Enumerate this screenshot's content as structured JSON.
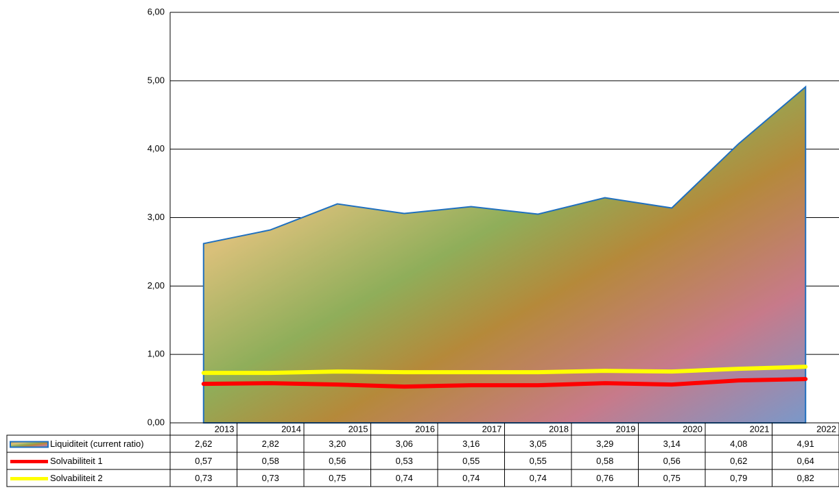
{
  "chart_data": {
    "type": "area",
    "categories": [
      "2013",
      "2014",
      "2015",
      "2016",
      "2017",
      "2018",
      "2019",
      "2020",
      "2021",
      "2022"
    ],
    "series": [
      {
        "name": "Liquiditeit (current ratio)",
        "type": "area",
        "color": "#1f6fbf",
        "values": [
          2.62,
          2.82,
          3.2,
          3.06,
          3.16,
          3.05,
          3.29,
          3.14,
          4.08,
          4.91
        ],
        "value_labels": [
          "2,62",
          "2,82",
          "3,20",
          "3,06",
          "3,16",
          "3,05",
          "3,29",
          "3,14",
          "4,08",
          "4,91"
        ]
      },
      {
        "name": "Solvabiliteit 1",
        "type": "line",
        "color": "#ff0000",
        "values": [
          0.57,
          0.58,
          0.56,
          0.53,
          0.55,
          0.55,
          0.58,
          0.56,
          0.62,
          0.64
        ],
        "value_labels": [
          "0,57",
          "0,58",
          "0,56",
          "0,53",
          "0,55",
          "0,55",
          "0,58",
          "0,56",
          "0,62",
          "0,64"
        ]
      },
      {
        "name": "Solvabiliteit 2",
        "type": "line",
        "color": "#ffff00",
        "values": [
          0.73,
          0.73,
          0.75,
          0.74,
          0.74,
          0.74,
          0.76,
          0.75,
          0.79,
          0.82
        ],
        "value_labels": [
          "0,73",
          "0,73",
          "0,75",
          "0,74",
          "0,74",
          "0,74",
          "0,76",
          "0,75",
          "0,79",
          "0,82"
        ]
      }
    ],
    "ylim": [
      0,
      6
    ],
    "yticks": [
      {
        "value": 0,
        "label": "0,00"
      },
      {
        "value": 1,
        "label": "1,00"
      },
      {
        "value": 2,
        "label": "2,00"
      },
      {
        "value": 3,
        "label": "3,00"
      },
      {
        "value": 4,
        "label": "4,00"
      },
      {
        "value": 5,
        "label": "5,00"
      },
      {
        "value": 6,
        "label": "6,00"
      }
    ],
    "grid": true
  }
}
